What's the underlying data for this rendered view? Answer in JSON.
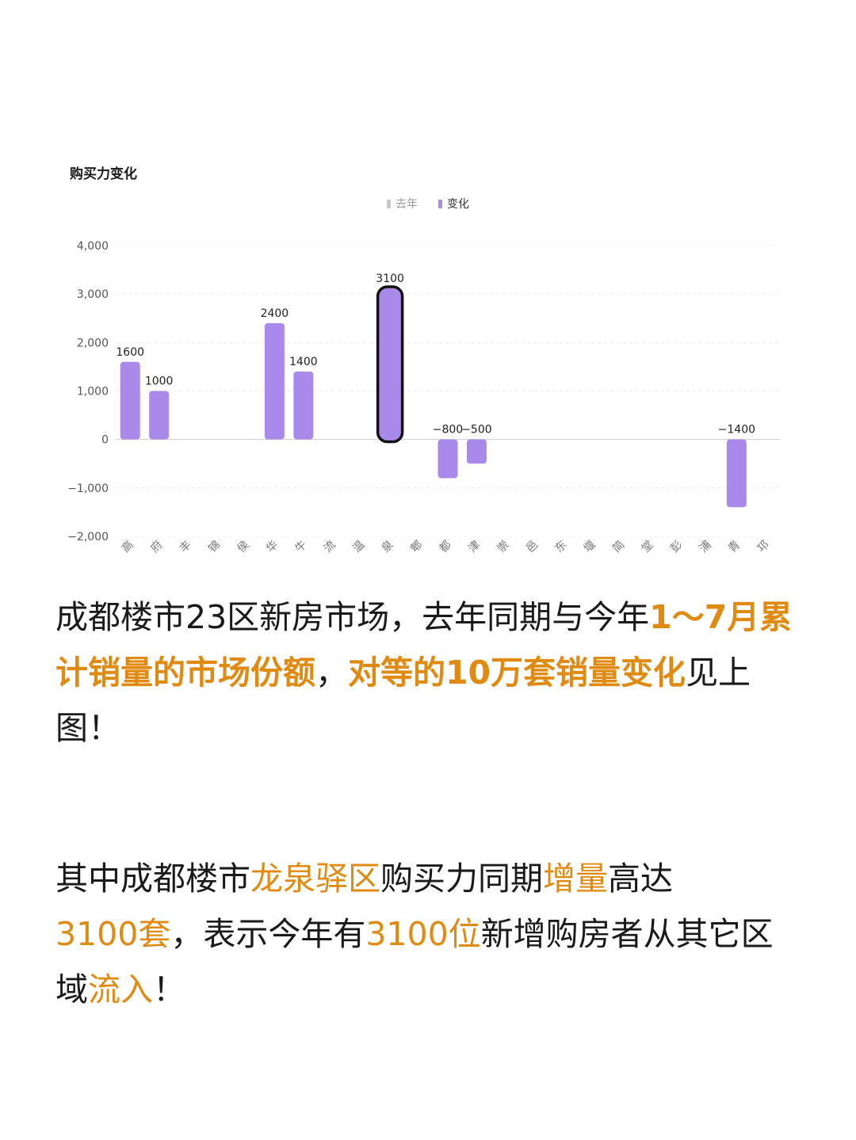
{
  "accent_color": "#e08a12",
  "chart_data": {
    "type": "bar",
    "title": "购买力变化",
    "legend": [
      {
        "name": "去年",
        "color": "#c8c8c8"
      },
      {
        "name": "变化",
        "color": "#a98aea"
      }
    ],
    "categories": [
      "高",
      "府",
      "丰",
      "锦",
      "侯",
      "华",
      "牛",
      "流",
      "温",
      "泉",
      "郫",
      "都",
      "津",
      "崇",
      "邑",
      "东",
      "堰",
      "简",
      "堂",
      "彭",
      "浦",
      "青",
      "邛"
    ],
    "series": [
      {
        "name": "变化",
        "values": [
          1600,
          1000,
          null,
          null,
          null,
          2400,
          1400,
          null,
          null,
          3100,
          null,
          -800,
          -500,
          null,
          null,
          null,
          null,
          null,
          null,
          null,
          null,
          -1400,
          null
        ]
      }
    ],
    "data_labels": [
      "1600",
      "1000",
      "",
      "",
      "",
      "2400",
      "1400",
      "",
      "",
      "3100",
      "",
      "−800",
      "−500",
      "",
      "",
      "",
      "",
      "",
      "",
      "",
      "",
      "−1400",
      ""
    ],
    "highlighted_category": "泉",
    "y_ticks": [
      "4,000",
      "3,000",
      "2,000",
      "1,000",
      "0",
      "−1,000",
      "−2,000"
    ],
    "ylim": [
      -2000,
      4000
    ],
    "grid": true,
    "legend_position": "top-center"
  },
  "text": {
    "p1": {
      "a": "成都楼市23区新房市场，去年同期与今年",
      "b": "1～7月累计销量的市场份额",
      "c": "，",
      "d": "对等的10万套销量变化",
      "e": "见上图！"
    },
    "p2": {
      "a": "其中成都楼市",
      "b": "龙泉驿区",
      "c": "购买力同期",
      "d": "增量",
      "e": "高达",
      "f": "3100套",
      "g": "，表示今年有",
      "h": "3100位",
      "i": "新增购房者从其它区域",
      "j": "流入",
      "k": "！"
    }
  }
}
